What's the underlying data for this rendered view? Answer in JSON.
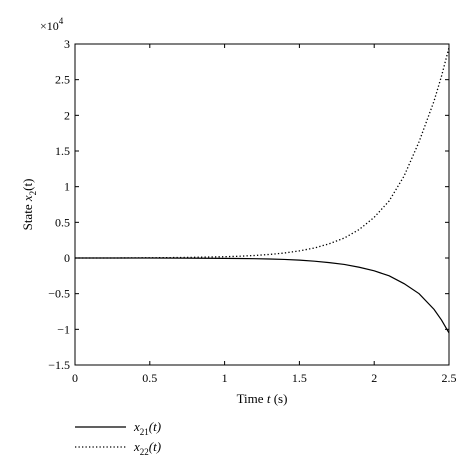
{
  "chart_data": {
    "type": "line",
    "xlabel_prefix": "Time",
    "xlabel_var": "t",
    "xlabel_unit": "(s)",
    "ylabel_prefix": "State",
    "ylabel_var": "x",
    "ylabel_sub": "2",
    "ylabel_arg": "(t)",
    "y_scale_base": "×10",
    "y_scale_exp": "4",
    "xlim": [
      0,
      2.5
    ],
    "ylim": [
      -1.5,
      3
    ],
    "xticks": [
      0,
      0.5,
      1,
      1.5,
      2,
      2.5
    ],
    "xtick_labels": [
      "0",
      "0.5",
      "1",
      "1.5",
      "2",
      "2.5"
    ],
    "yticks": [
      -1.5,
      -1,
      -0.5,
      0,
      0.5,
      1,
      1.5,
      2,
      2.5,
      3
    ],
    "ytick_labels": [
      "−1.5",
      "−1",
      "−0.5",
      "0",
      "0.5",
      "1",
      "1.5",
      "2",
      "2.5",
      "3"
    ],
    "series": [
      {
        "name_var": "x",
        "name_sub": "21",
        "name_arg": "(t)",
        "style": "solid",
        "x": [
          0,
          0.25,
          0.5,
          0.75,
          1.0,
          1.1,
          1.2,
          1.3,
          1.4,
          1.5,
          1.6,
          1.7,
          1.8,
          1.9,
          2.0,
          2.1,
          2.2,
          2.3,
          2.4,
          2.45,
          2.5
        ],
        "y": [
          0,
          0,
          0,
          -0.002,
          -0.005,
          -0.007,
          -0.01,
          -0.014,
          -0.02,
          -0.03,
          -0.045,
          -0.065,
          -0.09,
          -0.13,
          -0.18,
          -0.25,
          -0.36,
          -0.5,
          -0.72,
          -0.87,
          -1.05
        ]
      },
      {
        "name_var": "x",
        "name_sub": "22",
        "name_arg": "(t)",
        "style": "dotted",
        "x": [
          0,
          0.25,
          0.5,
          0.75,
          1.0,
          1.1,
          1.2,
          1.3,
          1.4,
          1.5,
          1.6,
          1.7,
          1.8,
          1.9,
          2.0,
          2.1,
          2.2,
          2.3,
          2.4,
          2.45,
          2.5
        ],
        "y": [
          0,
          0,
          0.003,
          0.008,
          0.018,
          0.025,
          0.035,
          0.05,
          0.07,
          0.1,
          0.14,
          0.2,
          0.28,
          0.4,
          0.57,
          0.8,
          1.15,
          1.63,
          2.2,
          2.55,
          2.95
        ]
      }
    ]
  }
}
